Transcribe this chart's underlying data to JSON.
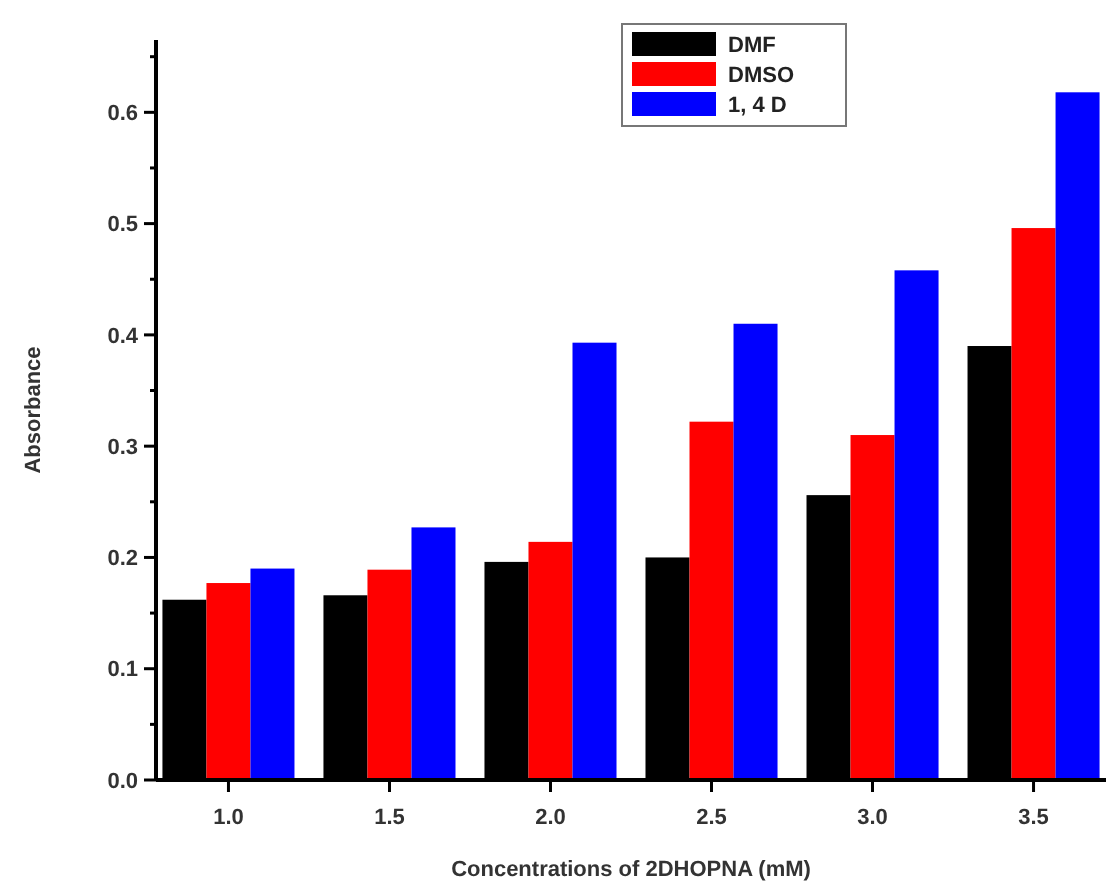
{
  "chart_data": {
    "type": "bar",
    "xlabel": "Concentrations of 2DHOPNA (mM)",
    "ylabel": "Absorbance",
    "categories": [
      "1.0",
      "1.5",
      "2.0",
      "2.5",
      "3.0",
      "3.5"
    ],
    "series": [
      {
        "name": "DMF",
        "color": "#000000",
        "values": [
          0.162,
          0.166,
          0.196,
          0.2,
          0.256,
          0.39
        ]
      },
      {
        "name": "DMSO",
        "color": "#ff0000",
        "values": [
          0.177,
          0.189,
          0.214,
          0.322,
          0.31,
          0.496
        ]
      },
      {
        "name": "1, 4 D",
        "color": "#0000ff",
        "values": [
          0.19,
          0.227,
          0.393,
          0.41,
          0.458,
          0.618
        ]
      }
    ],
    "ylim": [
      0,
      0.665
    ],
    "yticks": [
      {
        "value": 0,
        "label": "0.0"
      },
      {
        "value": 0.05,
        "label": null
      },
      0.1,
      {
        "value": 0.15,
        "label": null
      },
      0.2,
      {
        "value": 0.25,
        "label": null
      },
      0.3,
      {
        "value": 0.35,
        "label": null
      },
      0.4,
      {
        "value": 0.45,
        "label": null
      },
      0.5,
      {
        "value": 0.55,
        "label": null
      },
      0.6,
      {
        "value": 0.65,
        "label": null
      }
    ],
    "legend": "top right",
    "grid": false
  }
}
